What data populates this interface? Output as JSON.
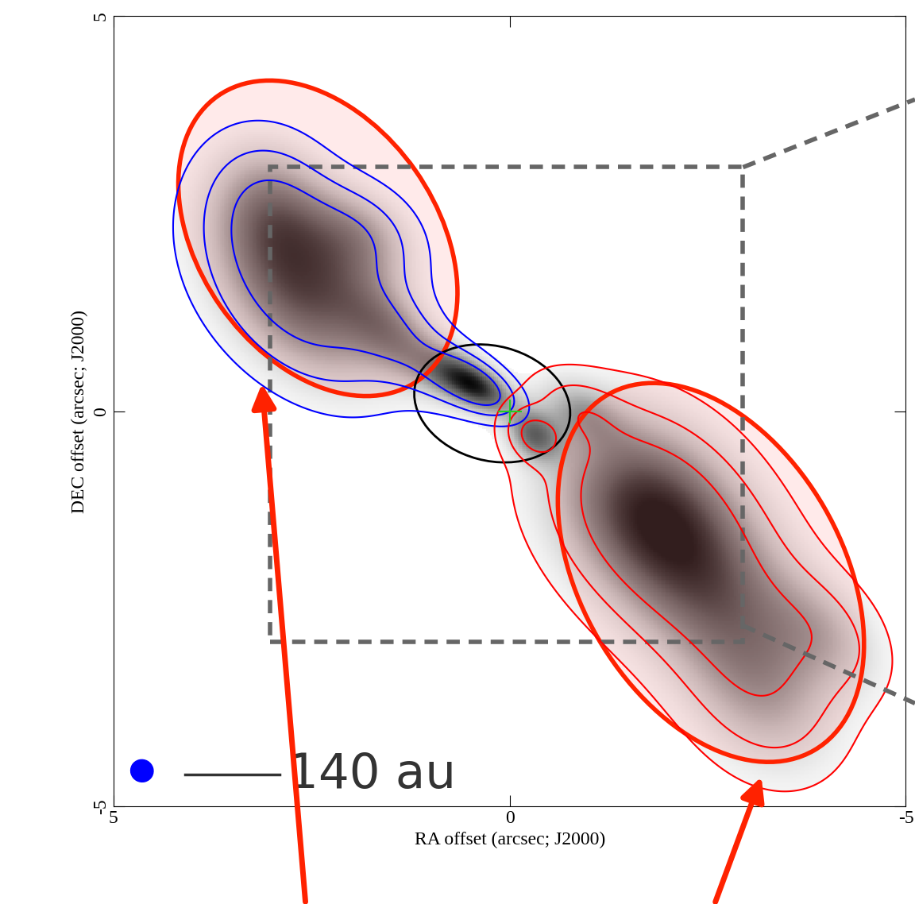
{
  "chart_data": {
    "type": "contour",
    "xlabel": "RA offset (arcsec; J2000)",
    "ylabel": "DEC offset (arcsec; J2000)",
    "xlim": [
      5,
      -5
    ],
    "ylim": [
      -5,
      5
    ],
    "xticks": [
      5,
      0,
      -5
    ],
    "yticks": [
      -5,
      0,
      5
    ],
    "levels": [
      0.12,
      0.35,
      0.7
    ],
    "source": {
      "x": 0,
      "y": 0,
      "color": "#22cc22"
    },
    "beam": {
      "major": 0.28,
      "minor": 0.22,
      "color": "#0000ff"
    },
    "scale_bar": {
      "label": "140 au",
      "length": 1.2
    },
    "series": [
      {
        "color": "#0000ff",
        "components": [
          [
            2.6,
            1.5,
            1.0,
            0.9,
            0.6,
            45
          ],
          [
            3.0,
            2.6,
            0.6,
            0.6,
            0.5,
            60
          ],
          [
            1.9,
            2.2,
            0.5,
            0.5,
            0.4,
            30
          ],
          [
            1.5,
            1.0,
            0.5,
            0.5,
            0.3,
            45
          ],
          [
            0.4,
            0.3,
            0.9,
            0.35,
            0.18,
            30
          ],
          [
            0.8,
            0.5,
            0.5,
            0.4,
            0.25,
            30
          ]
        ]
      },
      {
        "color": "#ff0000",
        "components": [
          [
            -1.7,
            -1.2,
            1.0,
            0.9,
            0.7,
            45
          ],
          [
            -2.5,
            -2.2,
            0.7,
            1.0,
            0.7,
            50
          ],
          [
            -3.2,
            -3.5,
            0.5,
            0.8,
            0.6,
            60
          ],
          [
            -0.3,
            -0.3,
            0.7,
            0.25,
            0.2,
            45
          ],
          [
            -0.9,
            0.0,
            0.4,
            0.4,
            0.25,
            30
          ],
          [
            -4.0,
            -2.8,
            0.35,
            0.6,
            0.4,
            45
          ]
        ]
      }
    ]
  }
}
